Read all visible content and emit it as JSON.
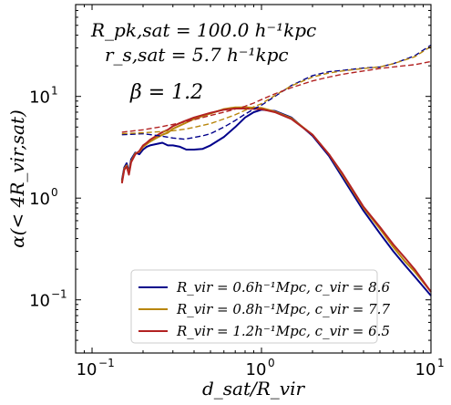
{
  "chart_data": {
    "type": "line",
    "xlabel": "d_sat/R_vir",
    "ylabel": "α(< 4R_vir,sat)",
    "xscale": "log",
    "yscale": "log",
    "xlim": [
      0.08,
      10
    ],
    "ylim": [
      0.03,
      80
    ],
    "x_ticks": [
      {
        "value": 0.1,
        "label": "10",
        "exp": "−1"
      },
      {
        "value": 1,
        "label": "10",
        "exp": "0"
      },
      {
        "value": 10,
        "label": "10",
        "exp": "1"
      }
    ],
    "y_ticks": [
      {
        "value": 0.1,
        "label": "10",
        "exp": "−1"
      },
      {
        "value": 1,
        "label": "10",
        "exp": "0"
      },
      {
        "value": 10,
        "label": "10",
        "exp": "1"
      }
    ],
    "annotations": {
      "rpk": "R_pk,sat = 100.0 h⁻¹kpc",
      "rs": "r_s,sat = 5.7 h⁻¹kpc",
      "beta": "β = 1.2"
    },
    "legend_position": "bottom-center",
    "series": [
      {
        "name": "R_vir = 0.6h⁻¹Mpc, c_vir = 8.6",
        "color": "#00008b",
        "style": "solid",
        "x": [
          0.15,
          0.155,
          0.16,
          0.165,
          0.17,
          0.18,
          0.19,
          0.2,
          0.21,
          0.22,
          0.24,
          0.26,
          0.28,
          0.3,
          0.33,
          0.36,
          0.4,
          0.45,
          0.5,
          0.6,
          0.7,
          0.8,
          0.9,
          1.0,
          1.2,
          1.5,
          2.0,
          2.5,
          3.0,
          4.0,
          5.0,
          6.0,
          7.0,
          8.0,
          10.0
        ],
        "y": [
          1.5,
          2.0,
          2.2,
          1.8,
          2.4,
          2.8,
          2.7,
          3.0,
          3.2,
          3.3,
          3.4,
          3.5,
          3.3,
          3.3,
          3.2,
          3.0,
          3.0,
          3.05,
          3.3,
          4.0,
          5.0,
          6.2,
          7.0,
          7.4,
          7.2,
          6.2,
          4.1,
          2.6,
          1.6,
          0.75,
          0.45,
          0.3,
          0.22,
          0.17,
          0.11
        ]
      },
      {
        "name": "R_vir = 0.8h⁻¹Mpc, c_vir = 7.7",
        "color": "#b8860b",
        "style": "solid",
        "x": [
          0.15,
          0.155,
          0.16,
          0.165,
          0.17,
          0.18,
          0.19,
          0.2,
          0.21,
          0.22,
          0.24,
          0.26,
          0.28,
          0.3,
          0.35,
          0.4,
          0.5,
          0.6,
          0.7,
          0.8,
          1.0,
          1.2,
          1.5,
          2.0,
          2.5,
          3.0,
          4.0,
          5.0,
          6.0,
          7.0,
          8.0,
          10.0
        ],
        "y": [
          1.45,
          1.95,
          2.1,
          1.75,
          2.3,
          2.75,
          2.85,
          3.2,
          3.4,
          3.6,
          3.9,
          4.2,
          4.4,
          4.8,
          5.4,
          6.0,
          6.8,
          7.5,
          7.8,
          7.8,
          7.7,
          7.1,
          6.1,
          4.2,
          2.7,
          1.7,
          0.8,
          0.5,
          0.33,
          0.24,
          0.19,
          0.12
        ]
      },
      {
        "name": "R_vir = 1.2h⁻¹Mpc, c_vir = 6.5",
        "color": "#b22222",
        "style": "solid",
        "x": [
          0.15,
          0.155,
          0.16,
          0.165,
          0.17,
          0.18,
          0.19,
          0.2,
          0.21,
          0.22,
          0.24,
          0.26,
          0.28,
          0.3,
          0.35,
          0.4,
          0.5,
          0.6,
          0.7,
          0.8,
          1.0,
          1.2,
          1.5,
          2.0,
          2.5,
          3.0,
          4.0,
          5.0,
          6.0,
          7.0,
          8.0,
          10.0
        ],
        "y": [
          1.4,
          1.9,
          2.05,
          1.7,
          2.25,
          2.7,
          2.9,
          3.3,
          3.5,
          3.75,
          4.1,
          4.45,
          4.7,
          5.1,
          5.7,
          6.2,
          6.9,
          7.4,
          7.6,
          7.6,
          7.5,
          7.0,
          6.0,
          4.2,
          2.7,
          1.75,
          0.82,
          0.52,
          0.35,
          0.26,
          0.2,
          0.12
        ]
      },
      {
        "name": "",
        "color": "#00008b",
        "style": "dashed",
        "x": [
          0.15,
          0.2,
          0.25,
          0.3,
          0.35,
          0.4,
          0.45,
          0.5,
          0.6,
          0.7,
          0.8,
          0.9,
          1.0,
          1.2,
          1.5,
          2.0,
          2.5,
          3.0,
          4.0,
          5.0,
          6.0,
          8.0,
          10.0
        ],
        "y": [
          4.2,
          4.3,
          4.1,
          3.9,
          3.8,
          3.95,
          4.1,
          4.3,
          5.0,
          5.8,
          6.7,
          7.5,
          8.2,
          10.0,
          12.8,
          16.0,
          17.5,
          18.0,
          19.0,
          19.5,
          21.0,
          25.0,
          32.0
        ]
      },
      {
        "name": "",
        "color": "#b8860b",
        "style": "dashed",
        "x": [
          0.15,
          0.2,
          0.25,
          0.3,
          0.35,
          0.4,
          0.45,
          0.5,
          0.6,
          0.7,
          0.8,
          0.9,
          1.0,
          1.2,
          1.5,
          2.0,
          2.5,
          3.0,
          4.0,
          5.0,
          6.0,
          8.0,
          10.0
        ],
        "y": [
          4.3,
          4.4,
          4.5,
          4.6,
          4.75,
          4.95,
          5.2,
          5.4,
          6.0,
          6.6,
          7.3,
          7.9,
          8.5,
          10.2,
          12.7,
          15.5,
          17.0,
          17.8,
          18.8,
          19.5,
          21.0,
          24.5,
          31.0
        ]
      },
      {
        "name": "",
        "color": "#b22222",
        "style": "dashed",
        "x": [
          0.15,
          0.2,
          0.25,
          0.3,
          0.35,
          0.4,
          0.45,
          0.5,
          0.6,
          0.7,
          0.8,
          0.9,
          1.0,
          1.2,
          1.5,
          2.0,
          2.5,
          3.0,
          4.0,
          5.0,
          6.0,
          8.0,
          10.0
        ],
        "y": [
          4.45,
          4.7,
          5.0,
          5.3,
          5.6,
          5.9,
          6.2,
          6.5,
          7.0,
          7.5,
          8.0,
          8.6,
          9.3,
          10.6,
          12.2,
          14.2,
          15.5,
          16.5,
          17.8,
          18.8,
          19.5,
          20.5,
          22.0
        ]
      }
    ]
  }
}
